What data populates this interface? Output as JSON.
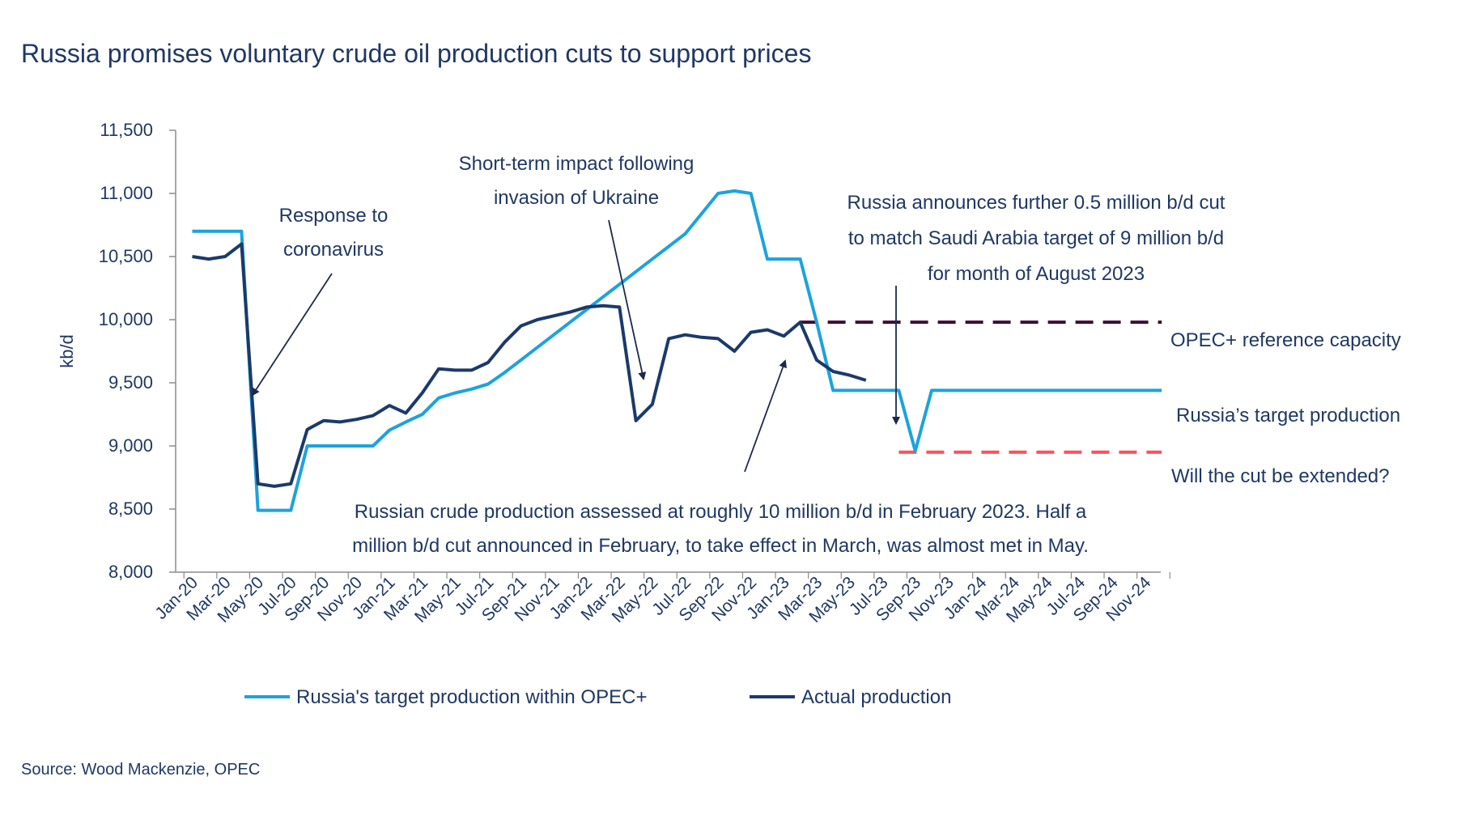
{
  "chart_data": {
    "type": "line",
    "title": "Russia promises voluntary crude oil production cuts to support prices",
    "ylabel": "kb/d",
    "xlabel": "",
    "ylim": [
      8000,
      11500
    ],
    "yticks": [
      8000,
      8500,
      9000,
      9500,
      10000,
      10500,
      11000,
      11500
    ],
    "ytick_labels": [
      "8,000",
      "8,500",
      "9,000",
      "9,500",
      "10,000",
      "10,500",
      "11,000",
      "11,500"
    ],
    "x": [
      "Jan-20",
      "Feb-20",
      "Mar-20",
      "Apr-20",
      "May-20",
      "Jun-20",
      "Jul-20",
      "Aug-20",
      "Sep-20",
      "Oct-20",
      "Nov-20",
      "Dec-20",
      "Jan-21",
      "Feb-21",
      "Mar-21",
      "Apr-21",
      "May-21",
      "Jun-21",
      "Jul-21",
      "Aug-21",
      "Sep-21",
      "Oct-21",
      "Nov-21",
      "Dec-21",
      "Jan-22",
      "Feb-22",
      "Mar-22",
      "Apr-22",
      "May-22",
      "Jun-22",
      "Jul-22",
      "Aug-22",
      "Sep-22",
      "Oct-22",
      "Nov-22",
      "Dec-22",
      "Jan-23",
      "Feb-23",
      "Mar-23",
      "Apr-23",
      "May-23",
      "Jun-23",
      "Jul-23",
      "Aug-23",
      "Sep-23",
      "Oct-23",
      "Nov-23",
      "Dec-23",
      "Jan-24",
      "Feb-24",
      "Mar-24",
      "Apr-24",
      "May-24",
      "Jun-24",
      "Jul-24",
      "Aug-24",
      "Sep-24",
      "Oct-24",
      "Nov-24",
      "Dec-24"
    ],
    "x_tick_labels": [
      "Jan-20",
      "Mar-20",
      "May-20",
      "Jul-20",
      "Sep-20",
      "Nov-20",
      "Jan-21",
      "Mar-21",
      "May-21",
      "Jul-21",
      "Sep-21",
      "Nov-21",
      "Jan-22",
      "Mar-22",
      "May-22",
      "Jul-22",
      "Sep-22",
      "Nov-22",
      "Jan-23",
      "Mar-23",
      "May-23",
      "Jul-23",
      "Sep-23",
      "Nov-23",
      "Jan-24",
      "Mar-24",
      "May-24",
      "Jul-24",
      "Sep-24",
      "Nov-24"
    ],
    "series": [
      {
        "name": "Russia's target production within OPEC+",
        "color": "#1ca3dc",
        "values": [
          10700,
          10700,
          10700,
          10700,
          8490,
          8490,
          8490,
          9000,
          9000,
          9000,
          9000,
          9000,
          9125,
          9190,
          9250,
          9380,
          9420,
          9450,
          9490,
          9580,
          9680,
          9780,
          9880,
          9980,
          10080,
          10180,
          10280,
          10380,
          10480,
          10580,
          10680,
          10840,
          11000,
          11020,
          11000,
          10480,
          10480,
          10480,
          9980,
          9440,
          9440,
          9440,
          9440,
          9440,
          8960,
          9440,
          9440,
          9440,
          9440,
          9440,
          9440,
          9440,
          9440,
          9440,
          9440,
          9440,
          9440,
          9440,
          9440,
          9440
        ]
      },
      {
        "name": "Actual production",
        "color": "#1b3a6b",
        "values": [
          10500,
          10480,
          10500,
          10600,
          8700,
          8680,
          8700,
          9130,
          9200,
          9190,
          9210,
          9240,
          9320,
          9260,
          9420,
          9610,
          9600,
          9600,
          9660,
          9820,
          9950,
          10000,
          10030,
          10060,
          10100,
          10110,
          10100,
          9200,
          9330,
          9850,
          9880,
          9860,
          9850,
          9750,
          9900,
          9920,
          9870,
          9980,
          9680,
          9590,
          9560,
          9520,
          null,
          null,
          null,
          null,
          null,
          null,
          null,
          null,
          null,
          null,
          null,
          null,
          null,
          null,
          null,
          null,
          null,
          null
        ]
      }
    ],
    "reference_lines": [
      {
        "label": "OPEC+ reference capacity",
        "value": 9980,
        "from": "Feb-23",
        "to": "Dec-24",
        "color": "#3d0d33",
        "style": "dashed"
      },
      {
        "label": "Will the cut be extended?",
        "value": 8950,
        "from": "Aug-23",
        "to": "Dec-24",
        "color": "#ff4f5a",
        "style": "dashed"
      }
    ],
    "side_labels": [
      "OPEC+ reference capacity",
      "Russia’s target production",
      "Will the cut be extended?"
    ],
    "annotations": [
      {
        "id": "covid",
        "lines": [
          "Response to",
          "coronavirus"
        ]
      },
      {
        "id": "ukraine",
        "lines": [
          "Short-term  impact following",
          "invasion of Ukraine"
        ]
      },
      {
        "id": "august",
        "lines": [
          "Russia announces further 0.5 million b/d cut",
          "to match Saudi Arabia target of 9 million b/d",
          "for month  of August 2023"
        ]
      },
      {
        "id": "feb23",
        "lines": [
          "Russian crude production  assessed at roughly 10 million b/d in February 2023. Half a",
          "million b/d cut  announced in February, to take effect in March, was almost met in May."
        ]
      }
    ],
    "legend_position": "bottom",
    "grid": false
  },
  "source": "Source:  Wood Mackenzie, OPEC"
}
